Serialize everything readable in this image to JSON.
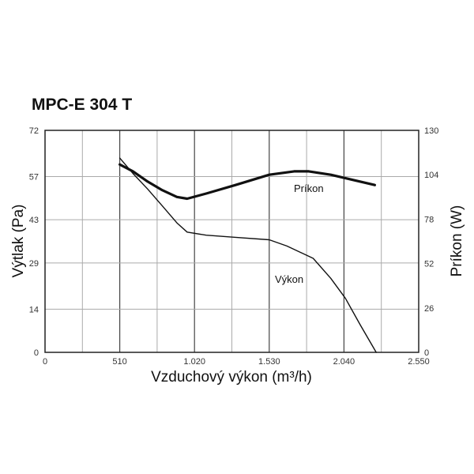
{
  "chart_data": {
    "type": "line",
    "title": "MPC-E 304 T",
    "xlabel": "Vzduchový výkon (m³/h)",
    "ylabel_left": "Výtlak (Pa)",
    "ylabel_right": "Príkon (W)",
    "xlim": [
      0,
      2550
    ],
    "ylim_left": [
      0,
      72
    ],
    "ylim_right": [
      0,
      130
    ],
    "x_ticks": [
      0,
      510,
      1020,
      1530,
      2040,
      2550
    ],
    "x_tick_labels": [
      "0",
      "510",
      "1.020",
      "1.530",
      "2.040",
      "2.550"
    ],
    "y_left_ticks": [
      0,
      14,
      29,
      43,
      57,
      72
    ],
    "y_left_tick_labels": [
      "0",
      "14",
      "29",
      "43",
      "57",
      "72"
    ],
    "y_right_ticks": [
      0,
      26,
      52,
      78,
      104,
      130
    ],
    "y_right_tick_labels": [
      "0",
      "26",
      "52",
      "78",
      "104",
      "130"
    ],
    "grid": true,
    "series": [
      {
        "name": "Výkon",
        "axis": "left",
        "color": "#111111",
        "x": [
          510,
          600,
          700,
          800,
          900,
          970,
          1100,
          1300,
          1530,
          1650,
          1830,
          1950,
          2050,
          2150,
          2260
        ],
        "y": [
          63,
          58,
          53,
          47.5,
          42,
          39,
          38,
          37.3,
          36.5,
          34.5,
          30.5,
          24,
          17.5,
          9,
          0
        ]
      },
      {
        "name": "Príkon",
        "axis": "right",
        "color": "#111111",
        "x": [
          510,
          600,
          700,
          800,
          900,
          970,
          1100,
          1300,
          1530,
          1700,
          1800,
          1950,
          2100,
          2250
        ],
        "y": [
          110,
          106,
          100,
          95,
          91,
          90,
          93,
          98,
          104,
          106,
          106,
          104,
          101,
          98
        ]
      }
    ]
  }
}
